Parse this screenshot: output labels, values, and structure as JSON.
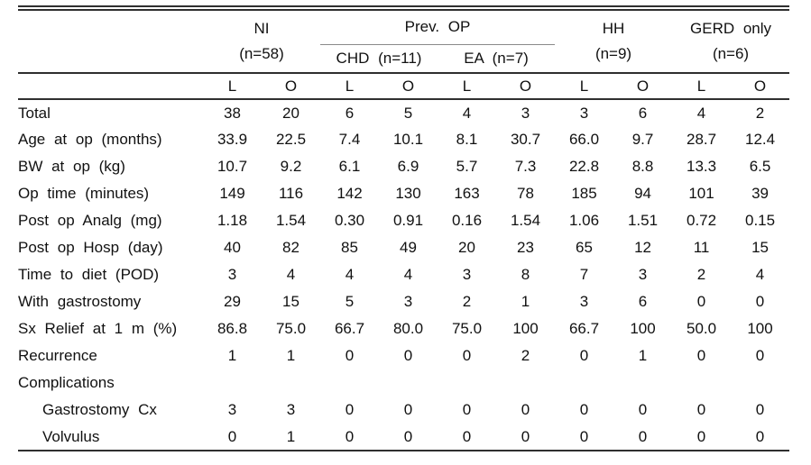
{
  "table": {
    "groups": [
      {
        "label": "NI",
        "sub": "(n=58)"
      },
      {
        "label": "Prev. OP",
        "children": [
          {
            "label": "CHD (n=11)"
          },
          {
            "label": "EA (n=7)"
          }
        ]
      },
      {
        "label": "HH",
        "sub": "(n=9)"
      },
      {
        "label": "GERD only",
        "sub": "(n=6)"
      }
    ],
    "col_headers": [
      "L",
      "O",
      "L",
      "O",
      "L",
      "O",
      "L",
      "O",
      "L",
      "O"
    ],
    "rows": [
      {
        "label": "Total",
        "indent": false,
        "values": [
          "38",
          "20",
          "6",
          "5",
          "4",
          "3",
          "3",
          "6",
          "4",
          "2"
        ]
      },
      {
        "label": "Age at op (months)",
        "indent": false,
        "values": [
          "33.9",
          "22.5",
          "7.4",
          "10.1",
          "8.1",
          "30.7",
          "66.0",
          "9.7",
          "28.7",
          "12.4"
        ]
      },
      {
        "label": "BW at op (kg)",
        "indent": false,
        "values": [
          "10.7",
          "9.2",
          "6.1",
          "6.9",
          "5.7",
          "7.3",
          "22.8",
          "8.8",
          "13.3",
          "6.5"
        ]
      },
      {
        "label": "Op time (minutes)",
        "indent": false,
        "values": [
          "149",
          "116",
          "142",
          "130",
          "163",
          "78",
          "185",
          "94",
          "101",
          "39"
        ]
      },
      {
        "label": "Post op Analg (mg)",
        "indent": false,
        "values": [
          "1.18",
          "1.54",
          "0.30",
          "0.91",
          "0.16",
          "1.54",
          "1.06",
          "1.51",
          "0.72",
          "0.15"
        ]
      },
      {
        "label": "Post op Hosp (day)",
        "indent": false,
        "values": [
          "40",
          "82",
          "85",
          "49",
          "20",
          "23",
          "65",
          "12",
          "11",
          "15"
        ]
      },
      {
        "label": "Time to diet (POD)",
        "indent": false,
        "values": [
          "3",
          "4",
          "4",
          "4",
          "3",
          "8",
          "7",
          "3",
          "2",
          "4"
        ]
      },
      {
        "label": "With gastrostomy",
        "indent": false,
        "values": [
          "29",
          "15",
          "5",
          "3",
          "2",
          "1",
          "3",
          "6",
          "0",
          "0"
        ]
      },
      {
        "label": "Sx Relief at 1 m (%)",
        "indent": false,
        "values": [
          "86.8",
          "75.0",
          "66.7",
          "80.0",
          "75.0",
          "100",
          "66.7",
          "100",
          "50.0",
          "100"
        ]
      },
      {
        "label": "Recurrence",
        "indent": false,
        "values": [
          "1",
          "1",
          "0",
          "0",
          "0",
          "2",
          "0",
          "1",
          "0",
          "0"
        ]
      },
      {
        "label": "Complications",
        "indent": false,
        "values": []
      },
      {
        "label": "Gastrostomy Cx",
        "indent": true,
        "values": [
          "3",
          "3",
          "0",
          "0",
          "0",
          "0",
          "0",
          "0",
          "0",
          "0"
        ]
      },
      {
        "label": "Volvulus",
        "indent": true,
        "values": [
          "0",
          "1",
          "0",
          "0",
          "0",
          "0",
          "0",
          "0",
          "0",
          "0"
        ]
      }
    ]
  }
}
